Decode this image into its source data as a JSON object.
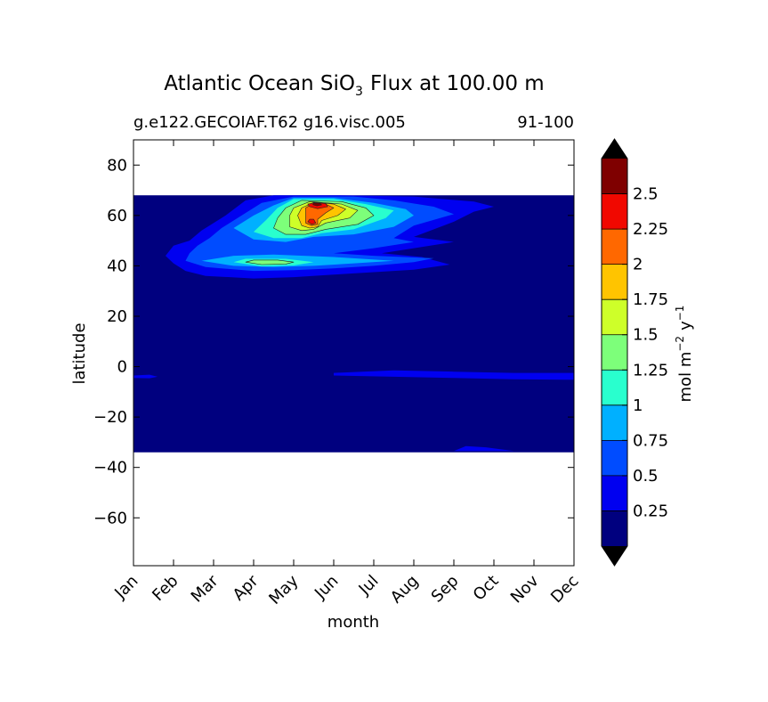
{
  "chart_data": {
    "type": "heatmap",
    "title_prefix": "Atlantic Ocean SiO",
    "title_subscript": "3",
    "title_suffix": "Flux at 100.00 m",
    "subtitle_left": "g.e122.GECOIAF.T62 g16.visc.005",
    "subtitle_right": "91-100",
    "xlabel": "month",
    "ylabel": "latitude",
    "x_tick_labels": [
      "Jan",
      "Feb",
      "Mar",
      "Apr",
      "May",
      "Jun",
      "Jul",
      "Aug",
      "Sep",
      "Oct",
      "Nov",
      "Dec"
    ],
    "xlim": [
      1,
      12
    ],
    "y_ticks": [
      80,
      60,
      40,
      20,
      0,
      -20,
      -40,
      -60
    ],
    "y_tick_labels": [
      "80",
      "60",
      "40",
      "20",
      "0",
      "−20",
      "−40",
      "−60"
    ],
    "ylim": [
      -79,
      90
    ],
    "data_lat_range": [
      -34,
      68
    ],
    "colorbar": {
      "label_main": "mol m",
      "label_exp1": "−2",
      "label_mid": "y",
      "label_exp2": "−1",
      "levels": [
        0,
        0.25,
        0.5,
        0.75,
        1,
        1.25,
        1.5,
        1.75,
        2,
        2.25,
        2.5,
        2.75
      ],
      "tick_labels": [
        "0.25",
        "0.5",
        "0.75",
        "1",
        "1.25",
        "1.5",
        "1.75",
        "2",
        "2.25",
        "2.5"
      ],
      "colors": [
        "#00007f",
        "#0000f0",
        "#004cff",
        "#00b0ff",
        "#29ffce",
        "#7dff7a",
        "#ceff29",
        "#ffc400",
        "#ff6800",
        "#f10800",
        "#7f0000"
      ],
      "extend": "both",
      "under_color": "#000000",
      "over_color": "#000000"
    },
    "regions": [
      {
        "level": 1,
        "points": [
          [
            1.0,
            -3.5
          ],
          [
            1.4,
            -3.2
          ],
          [
            1.6,
            -4.0
          ],
          [
            1.4,
            -4.6
          ],
          [
            1.0,
            -4.5
          ]
        ]
      },
      {
        "level": 1,
        "points": [
          [
            6.0,
            -2.5
          ],
          [
            7.5,
            -1.5
          ],
          [
            9.0,
            -2.0
          ],
          [
            10.5,
            -2.5
          ],
          [
            12.0,
            -2.5
          ],
          [
            12.0,
            -5.2
          ],
          [
            10.5,
            -5.0
          ],
          [
            9.0,
            -4.5
          ],
          [
            7.5,
            -4.0
          ],
          [
            6.0,
            -3.5
          ]
        ]
      },
      {
        "level": 1,
        "points": [
          [
            9.0,
            -33.5
          ],
          [
            9.3,
            -31.5
          ],
          [
            9.8,
            -32.0
          ],
          [
            10.5,
            -33.5
          ]
        ]
      },
      {
        "level": 1,
        "points": [
          [
            2.3,
            38
          ],
          [
            2.8,
            36
          ],
          [
            4.0,
            35
          ],
          [
            5.0,
            35.5
          ],
          [
            6.0,
            36.5
          ],
          [
            7.0,
            37.5
          ],
          [
            8.0,
            38.5
          ],
          [
            8.9,
            40.5
          ],
          [
            8.2,
            43.5
          ],
          [
            7.2,
            45
          ],
          [
            8.0,
            47
          ],
          [
            9.0,
            49.5
          ],
          [
            8.0,
            51.5
          ],
          [
            9.0,
            57.5
          ],
          [
            9.5,
            61.5
          ],
          [
            10.0,
            63.5
          ],
          [
            9.5,
            65.5
          ],
          [
            8.0,
            67.5
          ],
          [
            6.0,
            68
          ],
          [
            4.5,
            68
          ],
          [
            3.8,
            66
          ],
          [
            3.3,
            60
          ],
          [
            2.7,
            54
          ],
          [
            2.4,
            50
          ],
          [
            2.0,
            48
          ],
          [
            1.8,
            44
          ],
          [
            2.0,
            41
          ]
        ]
      },
      {
        "level": 2,
        "points": [
          [
            2.3,
            42
          ],
          [
            2.8,
            39.5
          ],
          [
            4.0,
            38
          ],
          [
            5.0,
            38.3
          ],
          [
            6.0,
            39
          ],
          [
            7.0,
            40
          ],
          [
            8.0,
            41.5
          ],
          [
            8.5,
            43
          ],
          [
            7.0,
            44
          ],
          [
            6.0,
            45
          ],
          [
            7.0,
            47
          ],
          [
            8.0,
            49.5
          ],
          [
            7.5,
            51
          ],
          [
            8.0,
            56
          ],
          [
            9.0,
            60.5
          ],
          [
            8.5,
            63.5
          ],
          [
            7.5,
            66
          ],
          [
            6.5,
            67.5
          ],
          [
            5.0,
            67.5
          ],
          [
            4.2,
            65
          ],
          [
            3.7,
            60
          ],
          [
            3.2,
            55
          ],
          [
            2.9,
            51
          ],
          [
            2.6,
            48
          ],
          [
            2.4,
            45
          ]
        ]
      },
      {
        "level": 3,
        "points": [
          [
            2.7,
            42
          ],
          [
            3.5,
            40
          ],
          [
            4.5,
            39.5
          ],
          [
            5.5,
            40
          ],
          [
            6.5,
            41
          ],
          [
            7.5,
            42
          ],
          [
            6.0,
            43.5
          ],
          [
            4.5,
            44.5
          ],
          [
            3.5,
            44
          ]
        ]
      },
      {
        "level": 3,
        "points": [
          [
            3.5,
            55
          ],
          [
            4.0,
            50.5
          ],
          [
            4.8,
            49.5
          ],
          [
            5.5,
            51.5
          ],
          [
            6.5,
            52.5
          ],
          [
            7.5,
            55.5
          ],
          [
            8.0,
            60
          ],
          [
            7.8,
            62.5
          ],
          [
            7.0,
            65
          ],
          [
            6.0,
            67
          ],
          [
            5.0,
            67
          ],
          [
            4.5,
            64
          ],
          [
            4.0,
            60
          ]
        ]
      },
      {
        "level": 4,
        "points": [
          [
            3.5,
            41.5
          ],
          [
            4.2,
            39.8
          ],
          [
            5.0,
            40.2
          ],
          [
            5.5,
            41.5
          ],
          [
            4.8,
            42.8
          ],
          [
            3.8,
            42.8
          ]
        ]
      },
      {
        "level": 4,
        "points": [
          [
            4.0,
            53.5
          ],
          [
            4.5,
            51
          ],
          [
            5.2,
            51
          ],
          [
            5.7,
            53
          ],
          [
            6.5,
            54.5
          ],
          [
            7.3,
            59
          ],
          [
            7.5,
            62
          ],
          [
            6.8,
            64.5
          ],
          [
            6.0,
            66.5
          ],
          [
            5.0,
            66.5
          ],
          [
            4.6,
            63
          ],
          [
            4.3,
            58
          ]
        ]
      },
      {
        "level": 5,
        "points": [
          [
            3.8,
            41.5
          ],
          [
            4.2,
            40.5
          ],
          [
            4.8,
            40.7
          ],
          [
            5.0,
            41.5
          ],
          [
            4.6,
            42.3
          ],
          [
            4.0,
            42.3
          ]
        ]
      },
      {
        "level": 5,
        "points": [
          [
            4.5,
            55
          ],
          [
            4.8,
            52.5
          ],
          [
            5.3,
            52.5
          ],
          [
            5.8,
            54.5
          ],
          [
            6.6,
            56.5
          ],
          [
            7.0,
            60
          ],
          [
            6.8,
            63
          ],
          [
            6.2,
            65.5
          ],
          [
            5.2,
            66
          ],
          [
            4.8,
            63
          ],
          [
            4.6,
            59
          ]
        ]
      },
      {
        "level": 6,
        "points": [
          [
            4.9,
            55.5
          ],
          [
            5.2,
            54
          ],
          [
            5.5,
            54.5
          ],
          [
            5.8,
            57
          ],
          [
            6.4,
            59
          ],
          [
            6.6,
            62
          ],
          [
            6.2,
            64.5
          ],
          [
            5.4,
            65.5
          ],
          [
            5.0,
            63
          ],
          [
            4.9,
            60
          ]
        ]
      },
      {
        "level": 7,
        "points": [
          [
            5.2,
            56
          ],
          [
            5.4,
            55
          ],
          [
            5.6,
            55.5
          ],
          [
            5.7,
            58
          ],
          [
            6.1,
            60
          ],
          [
            6.3,
            62.5
          ],
          [
            6.0,
            64.5
          ],
          [
            5.5,
            65.2
          ],
          [
            5.2,
            63
          ],
          [
            5.1,
            60
          ]
        ]
      },
      {
        "level": 8,
        "points": [
          [
            5.3,
            57
          ],
          [
            5.45,
            56
          ],
          [
            5.6,
            56.5
          ],
          [
            5.6,
            58.5
          ],
          [
            5.8,
            61
          ],
          [
            6.0,
            63
          ],
          [
            5.8,
            64.5
          ],
          [
            5.5,
            65
          ],
          [
            5.3,
            63
          ],
          [
            5.3,
            60
          ]
        ]
      },
      {
        "level": 9,
        "points": [
          [
            5.35,
            57.5
          ],
          [
            5.45,
            56.5
          ],
          [
            5.55,
            57
          ],
          [
            5.5,
            58.5
          ],
          [
            5.4,
            58.5
          ]
        ]
      },
      {
        "level": 9,
        "points": [
          [
            5.4,
            63.5
          ],
          [
            5.6,
            62.7
          ],
          [
            5.85,
            63.5
          ],
          [
            5.8,
            64.7
          ],
          [
            5.55,
            65.1
          ],
          [
            5.35,
            64.5
          ]
        ]
      },
      {
        "level": 10,
        "points": [
          [
            5.48,
            64.3
          ],
          [
            5.58,
            63.8
          ],
          [
            5.7,
            64.2
          ],
          [
            5.65,
            64.9
          ],
          [
            5.5,
            64.9
          ]
        ]
      }
    ]
  }
}
